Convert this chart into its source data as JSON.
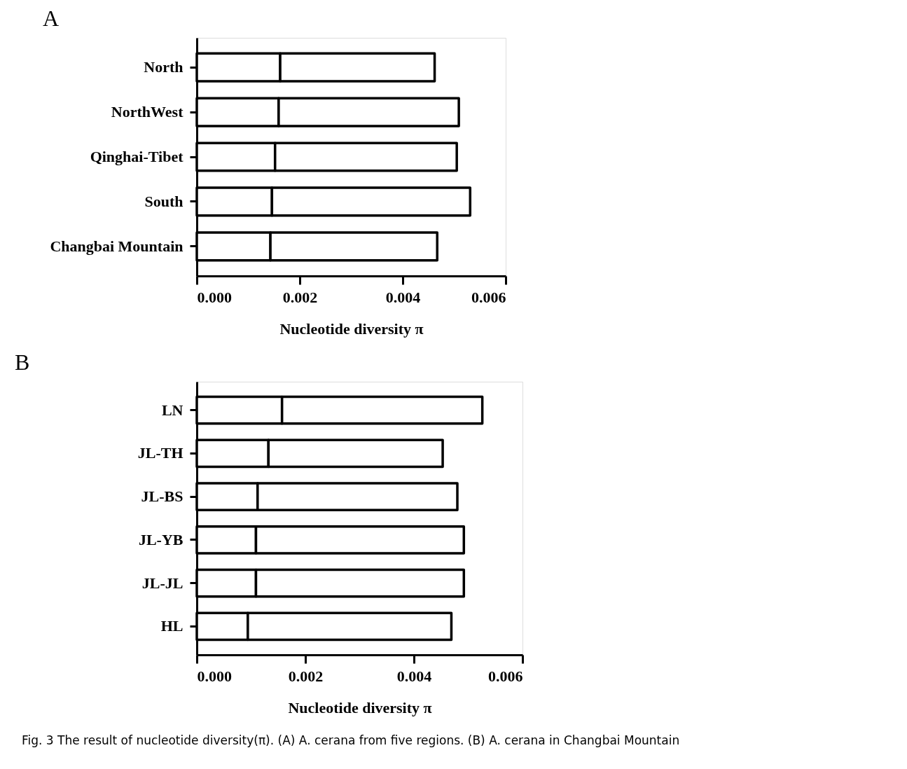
{
  "chart_data": [
    {
      "type": "bar",
      "orientation": "horizontal",
      "stacked": true,
      "title": "A",
      "xlabel": "Nucleotide diversity π",
      "categories": [
        "North",
        "NorthWest",
        "Qinghai-Tibet",
        "South",
        "Changbai Mountain"
      ],
      "series": [
        {
          "color": "#ffffff",
          "values": [
            0.00162,
            0.00159,
            0.00152,
            0.00146,
            0.00143
          ]
        },
        {
          "color": "#ffffff",
          "values": [
            0.003,
            0.0035,
            0.00353,
            0.00385,
            0.00324
          ]
        }
      ],
      "xlim": [
        0,
        0.006
      ],
      "xticks": [
        {
          "value": 0,
          "label": "0.000"
        },
        0.002,
        0.004,
        0.006
      ],
      "grid": false
    },
    {
      "type": "bar",
      "orientation": "horizontal",
      "stacked": true,
      "title": "B",
      "xlabel": "Nucleotide diversity π",
      "categories": [
        "LN",
        "JL-TH",
        "JL-BS",
        "JL-YB",
        "JL-JL",
        "HL"
      ],
      "series": [
        {
          "color": "#ffffff",
          "values": [
            0.00157,
            0.00132,
            0.00112,
            0.00109,
            0.00109,
            0.00094
          ]
        },
        {
          "color": "#ffffff",
          "values": [
            0.00369,
            0.00321,
            0.00368,
            0.00383,
            0.00383,
            0.00375
          ]
        }
      ],
      "xlim": [
        0,
        0.006
      ],
      "xticks": [
        {
          "value": 0,
          "label": "0.000"
        },
        0.002,
        0.004,
        0.006
      ],
      "grid": false,
      "annotations": [
        "Fig. 3 The result of nucleotide diversity(π). (A) A. cerana from five regions. (B) A. cerana in Changbai Mountain"
      ]
    }
  ]
}
